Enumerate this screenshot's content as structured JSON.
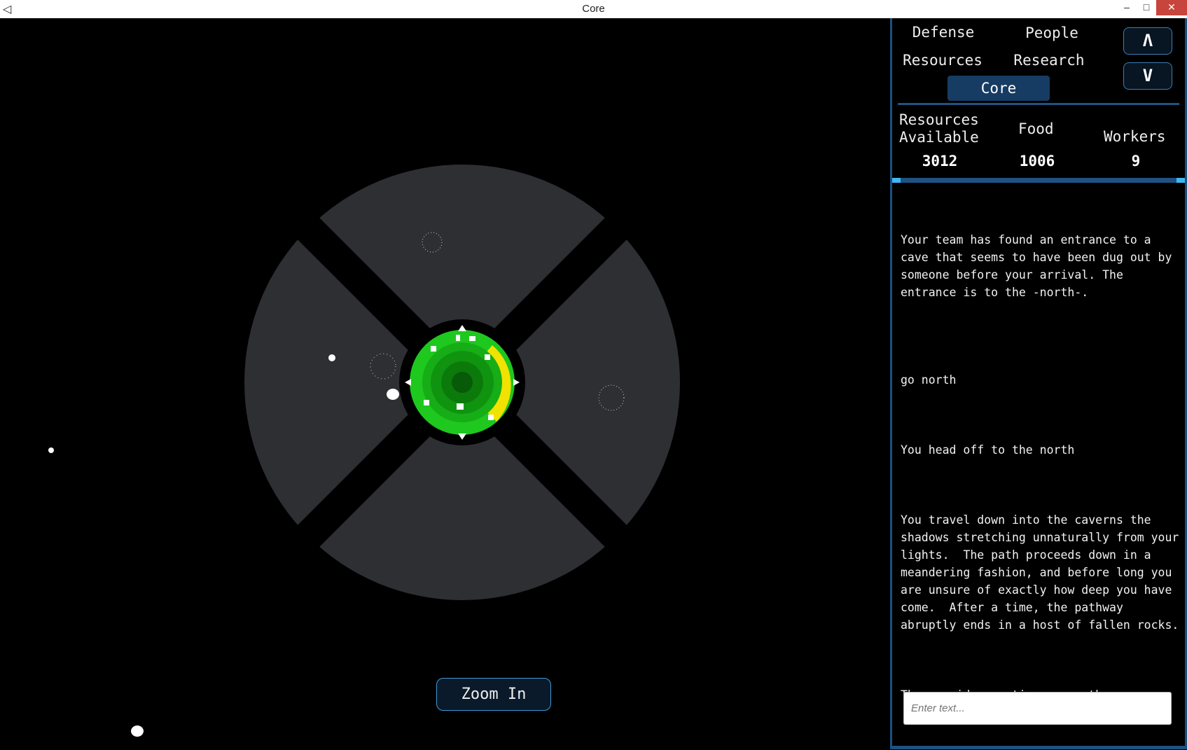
{
  "window": {
    "title": "Core",
    "minimize": "–",
    "maximize": "□",
    "close": "✕"
  },
  "tabs": {
    "defense": "Defense",
    "people": "People",
    "resources": "Resources",
    "research": "Research",
    "core": "Core"
  },
  "scroll": {
    "up": "Λ",
    "down": "V"
  },
  "stats": {
    "resources_label": "Resources\nAvailable",
    "resources_value": "3012",
    "food_label": "Food",
    "food_value": "1006",
    "workers_label": "Workers",
    "workers_value": "9"
  },
  "log": [
    "Your team has found an entrance to a cave that seems to have been dug out by someone before your arrival. The entrance is to the -north-.",
    "go north",
    "You head off to the north",
    "You travel down into the caverns the shadows stretching unnaturally from your lights.  The path proceeds down in a meandering fashion, and before long you are unsure of exactly how deep you have come.  After a time, the pathway abruptly ends in a host of fallen rocks.",
    "The corridor continues -north-"
  ],
  "input": {
    "placeholder": "Enter text..."
  },
  "zoom_button": "Zoom In",
  "colors": {
    "panel_accent": "#1f5283",
    "core_green": "#1ec81e",
    "core_yellow": "#f2e200",
    "sector": "#2e2f33"
  }
}
